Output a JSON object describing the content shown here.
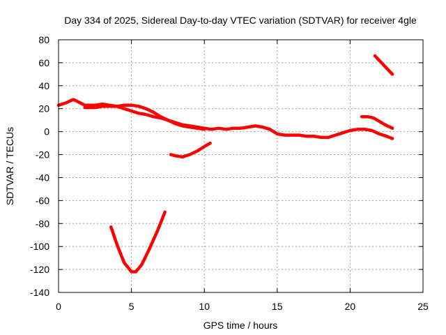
{
  "chart_data": {
    "type": "line",
    "title": "Day 334 of 2025, Sidereal Day-to-day VTEC variation (SDTVAR) for receiver 4gle",
    "xlabel": "GPS time / hours",
    "ylabel": "SDTVAR / TECUs",
    "xlim": [
      0,
      25
    ],
    "ylim": [
      -140,
      80
    ],
    "xticks": [
      0,
      5,
      10,
      15,
      20,
      25
    ],
    "yticks": [
      -140,
      -120,
      -100,
      -80,
      -60,
      -40,
      -20,
      0,
      20,
      40,
      60,
      80
    ],
    "grid": true,
    "color": "#ff0000",
    "series": [
      {
        "name": "seg-main-upper",
        "x": [
          0.0,
          0.5,
          1.0,
          1.2,
          1.8,
          2.5,
          3.0,
          3.5,
          4.0,
          4.5,
          5.0,
          5.5,
          6.0,
          6.5,
          7.0,
          7.5,
          8.0,
          8.5,
          9.0,
          9.5,
          10.0,
          10.5,
          11.0,
          11.5,
          12.0,
          12.5,
          13.0,
          13.5,
          14.0,
          14.5,
          15.0,
          15.5,
          16.0,
          16.5,
          17.0,
          17.5,
          18.0,
          18.5,
          19.0,
          19.5,
          20.0,
          20.5,
          21.0,
          21.5,
          22.0,
          22.5,
          22.9
        ],
        "y": [
          23,
          25,
          28,
          27,
          23,
          23,
          24,
          23,
          22,
          20,
          18,
          16,
          15,
          13,
          12,
          10,
          8,
          6,
          5,
          4,
          3,
          2,
          3,
          2,
          3,
          3,
          4,
          5,
          4,
          2,
          -2,
          -3,
          -3,
          -3,
          -4,
          -4,
          -5,
          -5,
          -3,
          -1,
          1,
          2,
          2,
          1,
          -2,
          -4,
          -6
        ]
      },
      {
        "name": "seg-main-lower",
        "x": [
          1.8,
          2.5,
          3.0,
          3.5,
          4.0,
          4.5,
          5.0,
          5.5,
          6.0,
          6.5,
          7.0,
          7.5,
          8.0,
          8.5,
          9.0,
          9.5,
          10.0
        ],
        "y": [
          21,
          21,
          22,
          22,
          22,
          23,
          23,
          22,
          20,
          17,
          13,
          10,
          7,
          5,
          4,
          3,
          2
        ]
      },
      {
        "name": "seg-late-high",
        "x": [
          20.8,
          21.2,
          21.6,
          22.0,
          22.4,
          22.9
        ],
        "y": [
          13,
          13,
          12,
          9,
          6,
          3
        ]
      },
      {
        "name": "seg-top-right",
        "x": [
          21.7,
          22.3,
          22.9
        ],
        "y": [
          66,
          58,
          50
        ]
      },
      {
        "name": "seg-mid-dip",
        "x": [
          7.7,
          8.0,
          8.5,
          9.0,
          9.5,
          10.0,
          10.4
        ],
        "y": [
          -20,
          -21,
          -22,
          -20,
          -17,
          -13,
          -10
        ]
      },
      {
        "name": "seg-deep-v",
        "x": [
          3.6,
          4.0,
          4.5,
          5.0,
          5.3,
          5.7,
          6.2,
          6.8,
          7.3
        ],
        "y": [
          -83,
          -98,
          -114,
          -122,
          -122,
          -116,
          -103,
          -86,
          -70
        ]
      }
    ]
  }
}
